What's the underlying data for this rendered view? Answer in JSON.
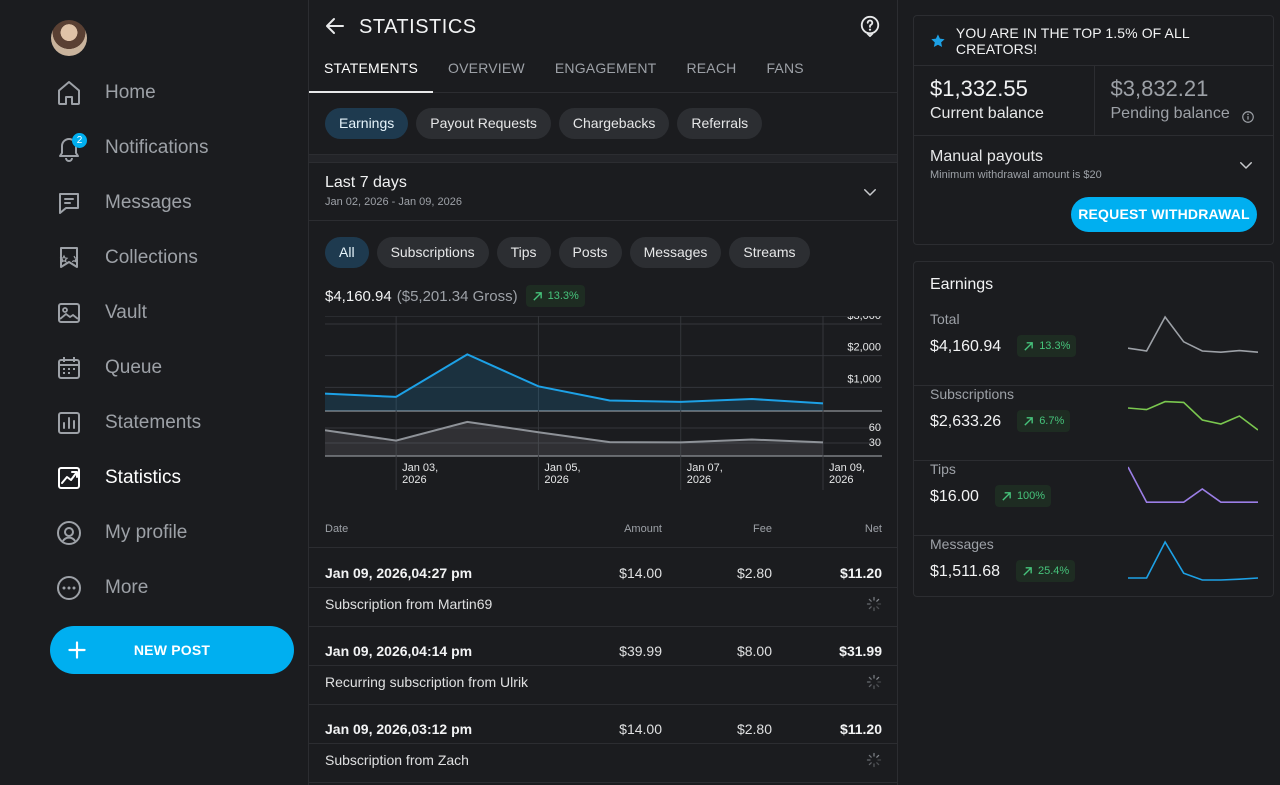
{
  "sidebar": {
    "items": [
      {
        "label": "Home",
        "icon": "home-icon"
      },
      {
        "label": "Notifications",
        "icon": "bell-icon",
        "badge": "2"
      },
      {
        "label": "Messages",
        "icon": "message-icon"
      },
      {
        "label": "Collections",
        "icon": "collections-icon"
      },
      {
        "label": "Vault",
        "icon": "vault-icon"
      },
      {
        "label": "Queue",
        "icon": "calendar-icon"
      },
      {
        "label": "Statements",
        "icon": "statements-icon"
      },
      {
        "label": "Statistics",
        "icon": "statistics-icon",
        "active": true
      },
      {
        "label": "My profile",
        "icon": "profile-icon"
      },
      {
        "label": "More",
        "icon": "more-icon"
      }
    ],
    "new_post_label": "NEW POST"
  },
  "header": {
    "title": "STATISTICS"
  },
  "tabs": [
    {
      "label": "STATEMENTS",
      "active": true
    },
    {
      "label": "OVERVIEW"
    },
    {
      "label": "ENGAGEMENT"
    },
    {
      "label": "REACH"
    },
    {
      "label": "FANS"
    }
  ],
  "statement_chips": [
    {
      "label": "Earnings",
      "active": true
    },
    {
      "label": "Payout Requests"
    },
    {
      "label": "Chargebacks"
    },
    {
      "label": "Referrals"
    }
  ],
  "period": {
    "title": "Last 7 days",
    "range": "Jan 02, 2026 - Jan 09, 2026"
  },
  "type_chips": [
    {
      "label": "All",
      "active": true
    },
    {
      "label": "Subscriptions"
    },
    {
      "label": "Tips"
    },
    {
      "label": "Posts"
    },
    {
      "label": "Messages"
    },
    {
      "label": "Streams"
    }
  ],
  "summary": {
    "net": "$4,160.94",
    "gross": "($5,201.34 Gross)",
    "change": "13.3%"
  },
  "chart_data": {
    "type": "line",
    "x": [
      "Jan 02, 2026",
      "Jan 03, 2026",
      "Jan 04, 2026",
      "Jan 05, 2026",
      "Jan 06, 2026",
      "Jan 07, 2026",
      "Jan 08, 2026",
      "Jan 09, 2026"
    ],
    "x_tick_labels": [
      [
        "Jan 03,",
        "2026"
      ],
      [
        "Jan 05,",
        "2026"
      ],
      [
        "Jan 07,",
        "2026"
      ],
      [
        "Jan 09,",
        "2026"
      ]
    ],
    "series": [
      {
        "values": [
          480,
          390,
          1560,
          680,
          290,
          250,
          330,
          210
        ],
        "color": "#1da1e6",
        "axis": "top"
      },
      {
        "values": [
          70,
          42,
          93,
          65,
          38,
          37,
          45,
          37
        ],
        "color": "#8e9298",
        "axis": "bottom"
      }
    ],
    "top_axis": {
      "ticks": [
        "$3,000",
        "$2,000",
        "$1,000"
      ],
      "ylim": [
        0,
        3000
      ]
    },
    "bottom_axis": {
      "ticks": [
        "60",
        "30"
      ],
      "ylim": [
        0,
        120
      ]
    },
    "grid": true
  },
  "table": {
    "headers": {
      "date": "Date",
      "amount": "Amount",
      "fee": "Fee",
      "net": "Net"
    },
    "rows": [
      {
        "date": "Jan 09, 2026,04:27 pm",
        "amount": "$14.00",
        "fee": "$2.80",
        "net": "$11.20",
        "desc": "Subscription from Martin69"
      },
      {
        "date": "Jan 09, 2026,04:14 pm",
        "amount": "$39.99",
        "fee": "$8.00",
        "net": "$31.99",
        "desc": "Recurring subscription from Ulrik"
      },
      {
        "date": "Jan 09, 2026,03:12 pm",
        "amount": "$14.00",
        "fee": "$2.80",
        "net": "$11.20",
        "desc": "Subscription from Zach"
      }
    ]
  },
  "right": {
    "banner": "YOU ARE IN THE TOP 1.5% OF ALL CREATORS!",
    "current_balance": "$1,332.55",
    "current_label": "Current balance",
    "pending_balance": "$3,832.21",
    "pending_label": "Pending balance",
    "payout_title": "Manual payouts",
    "payout_sub": "Minimum withdrawal amount is $20",
    "withdraw_label": "REQUEST WITHDRAWAL",
    "earnings_title": "Earnings",
    "earnings": [
      {
        "label": "Total",
        "value": "$4,160.94",
        "change": "13.3%",
        "color": "#9da1a7",
        "spark": [
          0.78,
          0.85,
          0.0,
          0.62,
          0.85,
          0.88,
          0.84,
          0.88
        ]
      },
      {
        "label": "Subscriptions",
        "value": "$2,633.26",
        "change": "6.7%",
        "color": "#7ac74f",
        "spark": [
          0.4,
          0.44,
          0.24,
          0.26,
          0.7,
          0.8,
          0.6,
          0.95
        ]
      },
      {
        "label": "Tips",
        "value": "$16.00",
        "change": "100%",
        "color": "#9b7ee6",
        "spark": [
          0.0,
          0.88,
          0.88,
          0.88,
          0.55,
          0.88,
          0.88,
          0.88
        ]
      },
      {
        "label": "Messages",
        "value": "$1,511.68",
        "change": "25.4%",
        "color": "#1da1e6",
        "spark": [
          0.9,
          0.9,
          0.0,
          0.78,
          0.95,
          0.95,
          0.93,
          0.9
        ]
      }
    ]
  }
}
